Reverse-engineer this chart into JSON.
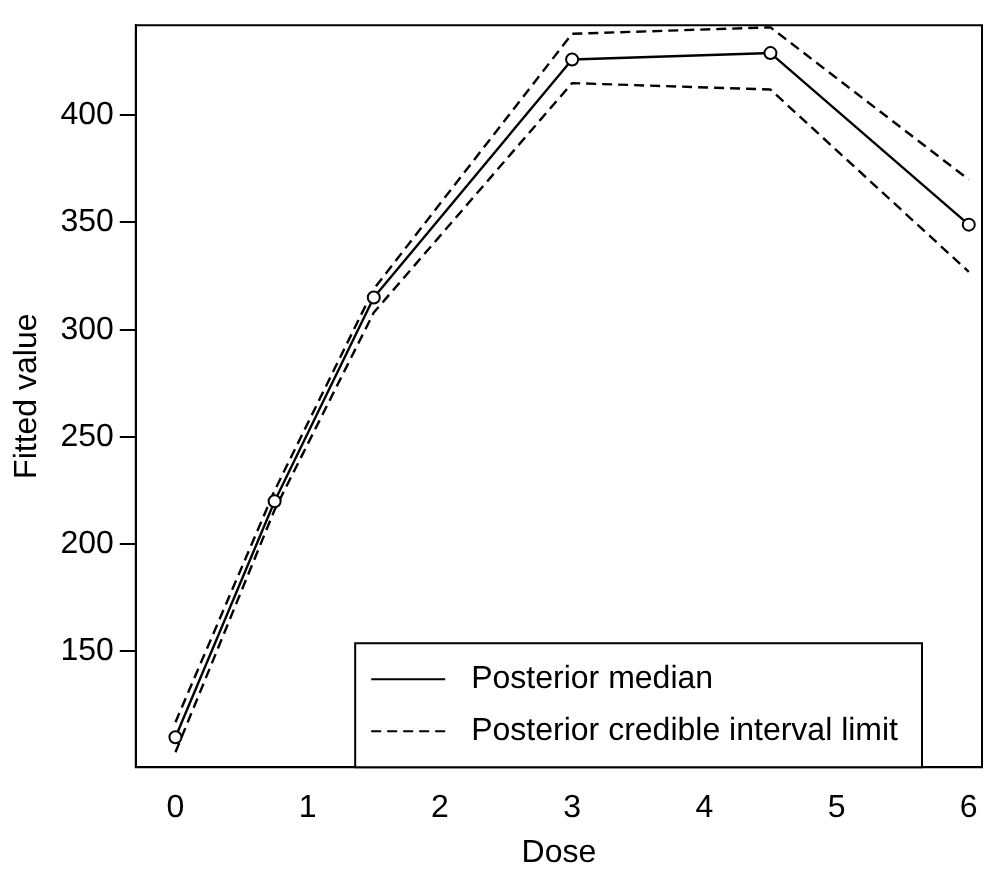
{
  "chart_data": {
    "type": "line",
    "xlabel": "Dose",
    "ylabel": "Fitted value",
    "x": [
      0,
      0.75,
      1.5,
      3,
      4.5,
      6
    ],
    "xlim": [
      -0.3,
      6.1
    ],
    "xticks": [
      0,
      1,
      2,
      3,
      4,
      5,
      6
    ],
    "ylim": [
      96,
      442
    ],
    "yticks": [
      150,
      200,
      250,
      300,
      350,
      400
    ],
    "grid": false,
    "legend": "bottom right",
    "series": [
      {
        "name": "Posterior median",
        "color": "#000000",
        "values": [
          110,
          220,
          315,
          426,
          429,
          349
        ],
        "marker": "circle",
        "line_style": "solid"
      },
      {
        "name": "Posterior credible interval limit",
        "color": "#000000",
        "values": [
          117,
          225,
          319,
          438,
          441,
          370
        ],
        "marker": "none",
        "line_style": "dashed"
      },
      {
        "color": "#000000",
        "values": [
          103,
          216,
          308,
          415,
          412,
          327
        ],
        "marker": "none",
        "line_style": "dashed"
      }
    ]
  }
}
